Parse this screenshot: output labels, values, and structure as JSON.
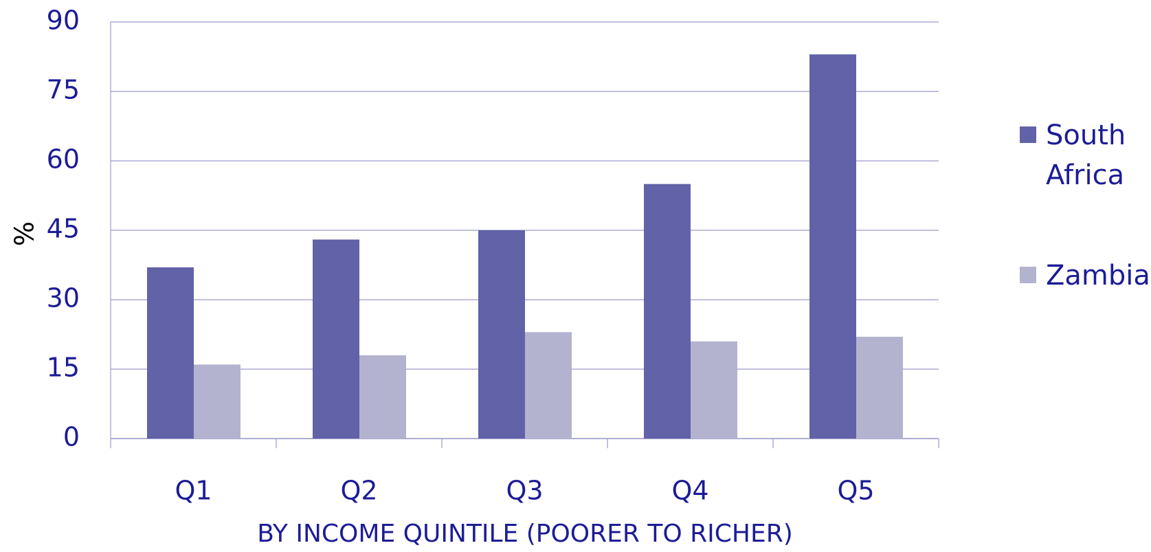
{
  "chart_data": {
    "type": "bar",
    "ylabel": "%",
    "xlabel": "BY INCOME QUINTILE (POORER TO RICHER)",
    "categories": [
      "Q1",
      "Q2",
      "Q3",
      "Q4",
      "Q5"
    ],
    "series": [
      {
        "name": "South Africa",
        "color": "#6262a8",
        "values": [
          37,
          43,
          45,
          55,
          83
        ]
      },
      {
        "name": "Zambia",
        "color": "#b3b3cf",
        "values": [
          16,
          18,
          23,
          21,
          22
        ]
      }
    ],
    "ylim": [
      0,
      90
    ],
    "yticks": [
      0,
      15,
      30,
      45,
      60,
      75,
      90
    ],
    "grid": true,
    "legend": "right"
  }
}
